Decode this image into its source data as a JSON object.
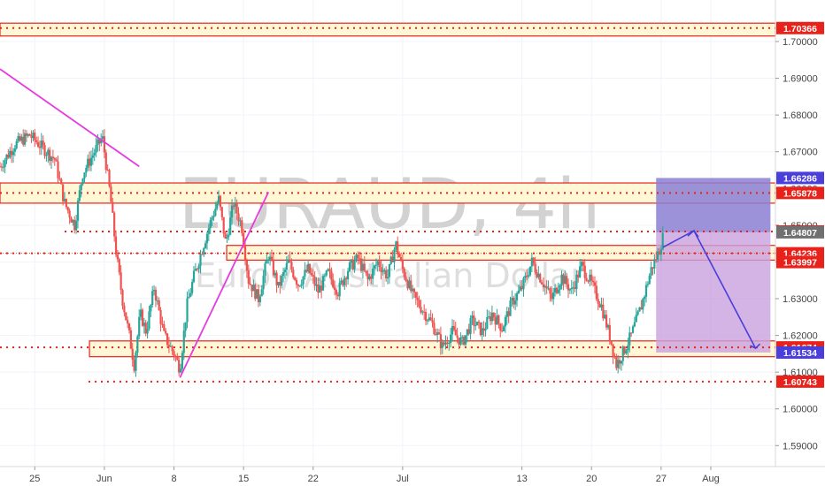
{
  "watermark": {
    "title": "EURAUD, 4h",
    "subtitle": "Euro / Australian Dollar"
  },
  "chart_data": {
    "type": "candlestick",
    "symbol": "EURAUD",
    "timeframe": "4h",
    "ylim": [
      1.5843,
      1.7113
    ],
    "y_ticks": [
      "1.70000",
      "1.69000",
      "1.68000",
      "1.67000",
      "1.66000",
      "1.65000",
      "1.64000",
      "1.63000",
      "1.62000",
      "1.61000",
      "1.60000",
      "1.59000"
    ],
    "x_ticks": [
      {
        "label": "25",
        "day": -6
      },
      {
        "label": "Jun",
        "day": 1
      },
      {
        "label": "8",
        "day": 8
      },
      {
        "label": "15",
        "day": 15
      },
      {
        "label": "22",
        "day": 22
      },
      {
        "label": "Jul",
        "day": 31
      },
      {
        "label": "13",
        "day": 43
      },
      {
        "label": "20",
        "day": 50
      },
      {
        "label": "27",
        "day": 57
      },
      {
        "label": "Aug",
        "day": 62
      }
    ],
    "x_range_days": [
      -9.5,
      68.5
    ],
    "price_path": [
      [
        -9.5,
        1.666
      ],
      [
        -8,
        1.672
      ],
      [
        -6.5,
        1.6745
      ],
      [
        -5,
        1.6705
      ],
      [
        -4,
        1.668
      ],
      [
        -3,
        1.656
      ],
      [
        -2,
        1.65
      ],
      [
        -1.2,
        1.664
      ],
      [
        0,
        1.67
      ],
      [
        0.8,
        1.674
      ],
      [
        1.6,
        1.658
      ],
      [
        2.2,
        1.642
      ],
      [
        2.8,
        1.63
      ],
      [
        3.5,
        1.62
      ],
      [
        4,
        1.612
      ],
      [
        4.6,
        1.626
      ],
      [
        5.2,
        1.621
      ],
      [
        6,
        1.633
      ],
      [
        7,
        1.62
      ],
      [
        8,
        1.615
      ],
      [
        8.6,
        1.611
      ],
      [
        9.3,
        1.628
      ],
      [
        10,
        1.636
      ],
      [
        11,
        1.645
      ],
      [
        11.8,
        1.652
      ],
      [
        12.5,
        1.657
      ],
      [
        13.2,
        1.645
      ],
      [
        14,
        1.656
      ],
      [
        14.8,
        1.65
      ],
      [
        15.5,
        1.635
      ],
      [
        16.5,
        1.63
      ],
      [
        17.5,
        1.642
      ],
      [
        18.5,
        1.633
      ],
      [
        19.5,
        1.64
      ],
      [
        20.5,
        1.634
      ],
      [
        21.5,
        1.638
      ],
      [
        22.5,
        1.632
      ],
      [
        23.5,
        1.637
      ],
      [
        24.5,
        1.632
      ],
      [
        25.5,
        1.638
      ],
      [
        26.5,
        1.641
      ],
      [
        27.5,
        1.635
      ],
      [
        28.5,
        1.64
      ],
      [
        29.5,
        1.636
      ],
      [
        30.3,
        1.645
      ],
      [
        31,
        1.638
      ],
      [
        32,
        1.631
      ],
      [
        33,
        1.627
      ],
      [
        34,
        1.623
      ],
      [
        35,
        1.617
      ],
      [
        36,
        1.621
      ],
      [
        37,
        1.618
      ],
      [
        38,
        1.624
      ],
      [
        39,
        1.621
      ],
      [
        40,
        1.626
      ],
      [
        41,
        1.622
      ],
      [
        42,
        1.629
      ],
      [
        43,
        1.633
      ],
      [
        44,
        1.64
      ],
      [
        45,
        1.635
      ],
      [
        46,
        1.63
      ],
      [
        47,
        1.636
      ],
      [
        48,
        1.632
      ],
      [
        49,
        1.639
      ],
      [
        50,
        1.634
      ],
      [
        51,
        1.628
      ],
      [
        52,
        1.618
      ],
      [
        52.5,
        1.612
      ],
      [
        53.3,
        1.616
      ],
      [
        54,
        1.62
      ],
      [
        55,
        1.628
      ],
      [
        56,
        1.638
      ],
      [
        56.8,
        1.643
      ],
      [
        57.2,
        1.647
      ]
    ],
    "horizontal_levels": [
      1.70366,
      1.65878,
      1.64828,
      1.64236,
      1.61674,
      1.60743
    ],
    "zones": [
      {
        "from_day": -9.5,
        "to_day": 68.5,
        "low": 1.7015,
        "high": 1.705
      },
      {
        "from_day": -9.5,
        "to_day": 68.5,
        "low": 1.656,
        "high": 1.6615
      },
      {
        "from_day": 13.3,
        "to_day": 68.5,
        "low": 1.6405,
        "high": 1.6445
      },
      {
        "from_day": -0.5,
        "to_day": 68.5,
        "low": 1.6142,
        "high": 1.6185
      }
    ],
    "trendlines": [
      {
        "color": "#e53ce0",
        "points": [
          [
            -9.5,
            1.6925
          ],
          [
            4.5,
            1.666
          ]
        ]
      },
      {
        "color": "#e53ce0",
        "points": [
          [
            8.6,
            1.6085
          ],
          [
            17.5,
            1.659
          ]
        ]
      }
    ],
    "position_box": {
      "from_day": 56.5,
      "to_day": 68,
      "top": 1.66286,
      "entry": 1.64807,
      "stop": 1.61534,
      "profit_color": "#8b7fd4",
      "loss_color": "#c9a0df"
    },
    "projection": {
      "color": "#4a3fd9",
      "points": [
        [
          57.2,
          1.644
        ],
        [
          60.3,
          1.6485
        ],
        [
          66.5,
          1.6165
        ]
      ]
    },
    "current_price_line": 1.64236,
    "price_labels": [
      {
        "text": "1.70366",
        "value": 1.70366,
        "bg": "#e8221a",
        "fg": "#ffffff"
      },
      {
        "text": "1.66286",
        "value": 1.66286,
        "bg": "#4a3fd9",
        "fg": "#ffffff"
      },
      {
        "text": "1.65878",
        "value": 1.65878,
        "bg": "#e8221a",
        "fg": "#ffffff"
      },
      {
        "text": "1.64828",
        "value": 1.64828,
        "bg": "#e8221a",
        "fg": "#ffffff"
      },
      {
        "text": "1.64807",
        "value": 1.64807,
        "bg": "#707070",
        "fg": "#ffffff"
      },
      {
        "text": "1.64236",
        "value": 1.64236,
        "bg": "#e8221a",
        "fg": "#ffffff"
      },
      {
        "text": "1.63997",
        "value": 1.63997,
        "bg": "#e8221a",
        "fg": "#ffffff"
      },
      {
        "text": "1.61674",
        "value": 1.61674,
        "bg": "#e8221a",
        "fg": "#ffffff"
      },
      {
        "text": "1.61534",
        "value": 1.61534,
        "bg": "#4a3fd9",
        "fg": "#ffffff"
      },
      {
        "text": "1.60743",
        "value": 1.60743,
        "bg": "#e8221a",
        "fg": "#ffffff"
      }
    ]
  },
  "colors": {
    "up": "#26a69a",
    "down": "#ef5350",
    "level": "#e8221a",
    "zone_fill": "#fff7d6",
    "axis_text": "#444444",
    "grid": "#f0f3fa"
  }
}
